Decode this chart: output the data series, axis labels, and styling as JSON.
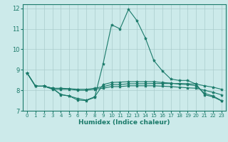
{
  "xlabel": "Humidex (Indice chaleur)",
  "background_color": "#cceaea",
  "grid_color": "#aacccc",
  "line_color": "#1a7a6a",
  "xlim": [
    -0.5,
    23.5
  ],
  "ylim": [
    7,
    12.2
  ],
  "yticks": [
    7,
    8,
    9,
    10,
    11,
    12
  ],
  "xticks": [
    0,
    1,
    2,
    3,
    4,
    5,
    6,
    7,
    8,
    9,
    10,
    11,
    12,
    13,
    14,
    15,
    16,
    17,
    18,
    19,
    20,
    21,
    22,
    23
  ],
  "series": [
    {
      "x": [
        0,
        1,
        2,
        3,
        4,
        5,
        6,
        7,
        8,
        9,
        10,
        11,
        12,
        13,
        14,
        15,
        16,
        17,
        18,
        19,
        20,
        21,
        22,
        23
      ],
      "y": [
        8.85,
        8.2,
        8.2,
        8.1,
        7.8,
        7.72,
        7.52,
        7.5,
        7.65,
        9.3,
        11.2,
        11.0,
        11.95,
        11.4,
        10.55,
        9.45,
        8.95,
        8.55,
        8.48,
        8.48,
        8.3,
        7.78,
        7.68,
        7.48
      ]
    },
    {
      "x": [
        0,
        1,
        2,
        3,
        4,
        5,
        6,
        7,
        8,
        9,
        10,
        11,
        12,
        13,
        14,
        15,
        16,
        17,
        18,
        19,
        20,
        21,
        22,
        23
      ],
      "y": [
        8.85,
        8.2,
        8.2,
        8.1,
        8.1,
        8.08,
        8.05,
        8.05,
        8.1,
        8.18,
        8.28,
        8.28,
        8.32,
        8.32,
        8.32,
        8.33,
        8.33,
        8.33,
        8.33,
        8.32,
        8.3,
        8.22,
        8.15,
        8.05
      ]
    },
    {
      "x": [
        0,
        1,
        2,
        3,
        4,
        5,
        6,
        7,
        8,
        9,
        10,
        11,
        12,
        13,
        14,
        15,
        16,
        17,
        18,
        19,
        20,
        21,
        22,
        23
      ],
      "y": [
        8.85,
        8.2,
        8.2,
        8.05,
        8.05,
        8.05,
        8.0,
        8.0,
        8.05,
        8.1,
        8.18,
        8.18,
        8.22,
        8.22,
        8.22,
        8.22,
        8.2,
        8.18,
        8.15,
        8.12,
        8.1,
        8.0,
        7.9,
        7.78
      ]
    },
    {
      "x": [
        0,
        1,
        2,
        3,
        4,
        5,
        6,
        7,
        8,
        9,
        10,
        11,
        12,
        13,
        14,
        15,
        16,
        17,
        18,
        19,
        20,
        21,
        22,
        23
      ],
      "y": [
        8.85,
        8.2,
        8.2,
        8.1,
        7.78,
        7.72,
        7.6,
        7.52,
        7.68,
        8.28,
        8.38,
        8.4,
        8.42,
        8.42,
        8.42,
        8.42,
        8.38,
        8.35,
        8.3,
        8.28,
        8.22,
        7.85,
        7.72,
        7.5
      ]
    }
  ]
}
